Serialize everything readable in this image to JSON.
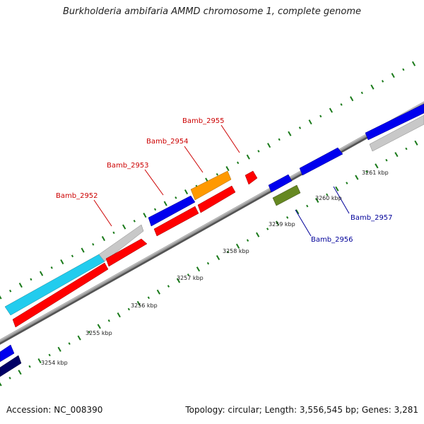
{
  "title": "Burkholderia ambifaria AMMD chromosome 1, complete genome",
  "footer": {
    "accession": "Accession: NC_008390",
    "summary": "Topology: circular; Length: 3,556,545 bp; Genes: 3,281"
  },
  "ticks": [
    "3254 kbp",
    "3255 kbp",
    "3256 kbp",
    "3257 kbp",
    "3258 kbp",
    "3259 kbp",
    "3260 kbp",
    "3261 kbp"
  ],
  "genes": [
    {
      "name": "Bamb_2952",
      "color": "#cc0000"
    },
    {
      "name": "Bamb_2953",
      "color": "#cc0000"
    },
    {
      "name": "Bamb_2954",
      "color": "#cc0000"
    },
    {
      "name": "Bamb_2955",
      "color": "#cc0000"
    },
    {
      "name": "Bamb_2956",
      "color": "#000099"
    },
    {
      "name": "Bamb_2957",
      "color": "#000099"
    }
  ],
  "colors": {
    "backbone": "#8a8a8a",
    "tick": "#1a7a1a",
    "red": "#ff0000",
    "blue": "#0000ee",
    "navy": "#000066",
    "cyan": "#22ccee",
    "gray": "#c8c8c8",
    "orange": "#ff9900",
    "olive": "#668822"
  }
}
